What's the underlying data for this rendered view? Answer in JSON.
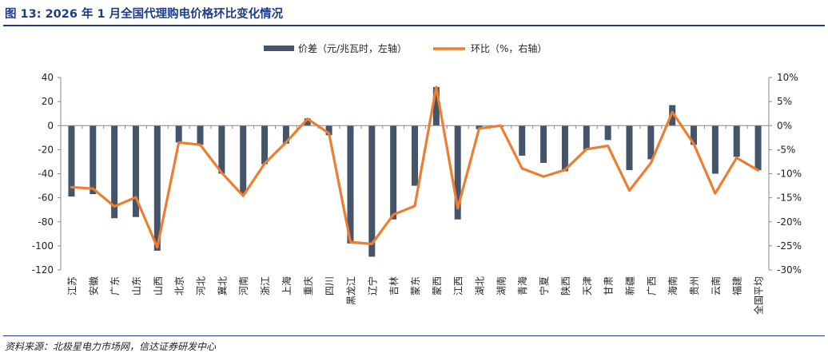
{
  "title": "图 13:  2026 年 1 月全国代理购电价格环比变化情况",
  "source": "资料来源：北极星电力市场网，信达证券研发中心",
  "chart_data": {
    "type": "bar",
    "categories": [
      "江苏",
      "安徽",
      "广东",
      "山东",
      "山西",
      "北京",
      "河北",
      "冀北",
      "河南",
      "浙江",
      "上海",
      "重庆",
      "四川",
      "黑龙江",
      "辽宁",
      "吉林",
      "蒙东",
      "蒙西",
      "江西",
      "湖北",
      "湖南",
      "青海",
      "宁夏",
      "陕西",
      "天津",
      "甘肃",
      "新疆",
      "广西",
      "海南",
      "贵州",
      "云南",
      "福建",
      "全国平均"
    ],
    "series": [
      {
        "name": "价差（元/兆瓦时，左轴）",
        "type": "bar",
        "axis": "left",
        "color": "#44546a",
        "values": [
          -59,
          -57,
          -77,
          -76,
          -104,
          -14,
          -16,
          -40,
          -57,
          -32,
          -15,
          6,
          -8,
          -98,
          -109,
          -78,
          -50,
          32,
          -78,
          -3,
          -1,
          -25,
          -31,
          -38,
          -20,
          -12,
          -37,
          -28,
          17,
          -16,
          -40,
          -26,
          -37
        ]
      },
      {
        "name": "环比（%，右轴）",
        "type": "line",
        "axis": "right",
        "color": "#ed7d31",
        "values": [
          -12.8,
          -13.1,
          -16.8,
          -14.9,
          -25.3,
          -3.5,
          -4.0,
          -9.8,
          -14.6,
          -7.9,
          -3.5,
          1.4,
          -1.6,
          -24.2,
          -24.6,
          -18.5,
          -16.7,
          8.0,
          -17.2,
          -0.6,
          0.0,
          -8.9,
          -10.6,
          -9.2,
          -4.9,
          -4.2,
          -13.5,
          -7.8,
          2.8,
          -3.8,
          -14.1,
          -6.7,
          -9.3
        ]
      }
    ],
    "left_axis": {
      "min": -120,
      "max": 40,
      "step": 20,
      "ticks": [
        "40",
        "20",
        "0",
        "-20",
        "-40",
        "-60",
        "-80",
        "-100",
        "-120"
      ]
    },
    "right_axis": {
      "min": -30,
      "max": 10,
      "step": 5,
      "ticks": [
        "10%",
        "5%",
        "0%",
        "-5%",
        "-10%",
        "-15%",
        "-20%",
        "-25%",
        "-30%"
      ]
    },
    "legend_position": "top-center",
    "grid": false
  }
}
